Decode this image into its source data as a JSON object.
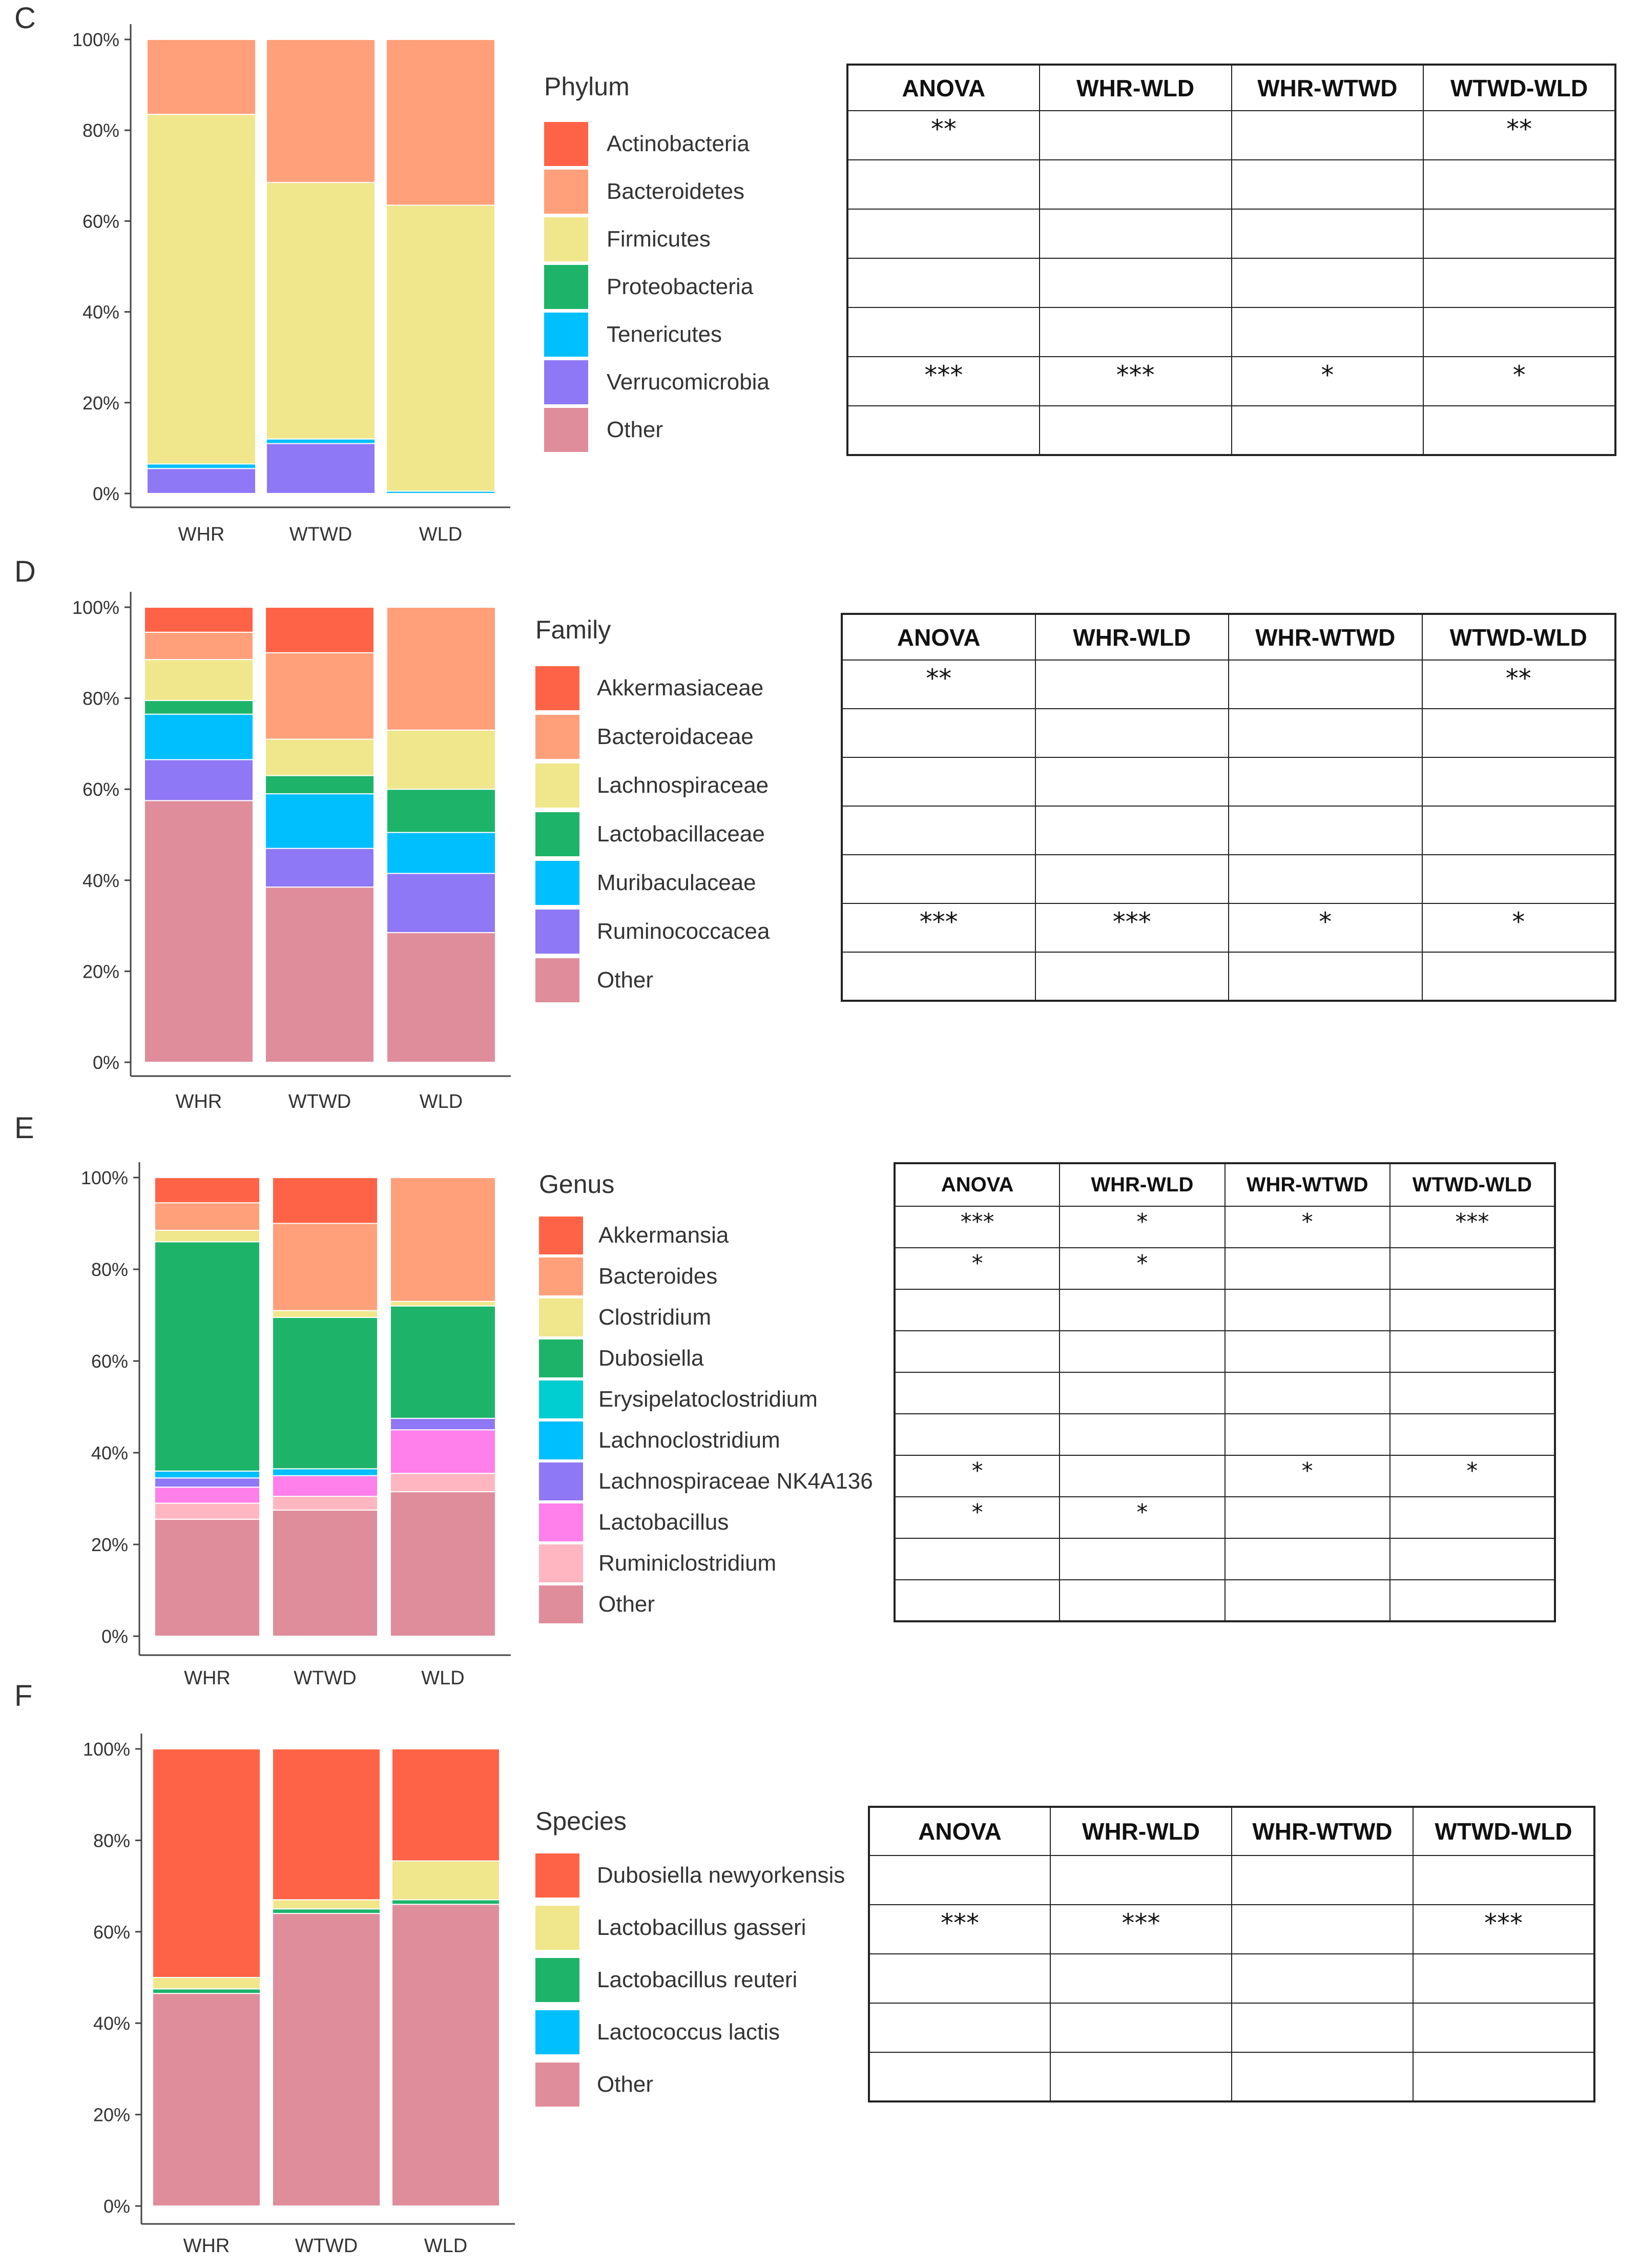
{
  "figure": {
    "panels": [
      {
        "id": "C",
        "letter": "C",
        "legend_title": "Phylum",
        "table": {
          "headers": [
            "ANOVA",
            "WHR-WLD",
            "WHR-WTWD",
            "WTWD-WLD"
          ],
          "rows": [
            [
              "**",
              "",
              "",
              "**"
            ],
            [
              "",
              "",
              "",
              ""
            ],
            [
              "",
              "",
              "",
              ""
            ],
            [
              "",
              "",
              "",
              ""
            ],
            [
              "",
              "",
              "",
              ""
            ],
            [
              "***",
              "***",
              "*",
              "*"
            ],
            [
              "",
              "",
              "",
              ""
            ]
          ]
        }
      },
      {
        "id": "D",
        "letter": "D",
        "legend_title": "Family",
        "table": {
          "headers": [
            "ANOVA",
            "WHR-WLD",
            "WHR-WTWD",
            "WTWD-WLD"
          ],
          "rows": [
            [
              "**",
              "",
              "",
              "**"
            ],
            [
              "",
              "",
              "",
              ""
            ],
            [
              "",
              "",
              "",
              ""
            ],
            [
              "",
              "",
              "",
              ""
            ],
            [
              "",
              "",
              "",
              ""
            ],
            [
              "***",
              "***",
              "*",
              "*"
            ],
            [
              "",
              "",
              "",
              ""
            ]
          ]
        }
      },
      {
        "id": "E",
        "letter": "E",
        "legend_title": "Genus",
        "table": {
          "headers": [
            "ANOVA",
            "WHR-WLD",
            "WHR-WTWD",
            "WTWD-WLD"
          ],
          "rows": [
            [
              "***",
              "*",
              "*",
              "***"
            ],
            [
              "*",
              "*",
              "",
              ""
            ],
            [
              "",
              "",
              "",
              ""
            ],
            [
              "",
              "",
              "",
              ""
            ],
            [
              "",
              "",
              "",
              ""
            ],
            [
              "",
              "",
              "",
              ""
            ],
            [
              "*",
              "",
              "*",
              "*"
            ],
            [
              "*",
              "*",
              "",
              ""
            ],
            [
              "",
              "",
              "",
              ""
            ],
            [
              "",
              "",
              "",
              ""
            ]
          ]
        }
      },
      {
        "id": "F",
        "letter": "F",
        "legend_title": "Species",
        "table": {
          "headers": [
            "ANOVA",
            "WHR-WLD",
            "WHR-WTWD",
            "WTWD-WLD"
          ],
          "rows": [
            [
              "",
              "",
              "",
              ""
            ],
            [
              "***",
              "***",
              "",
              "***"
            ],
            [
              "",
              "",
              "",
              ""
            ],
            [
              "",
              "",
              "",
              ""
            ],
            [
              "",
              "",
              "",
              ""
            ]
          ]
        }
      }
    ]
  },
  "chart_data": [
    {
      "type": "bar",
      "stacked": true,
      "panel": "C",
      "title": "",
      "xlabel": "",
      "ylabel": "",
      "ylim": [
        0,
        100
      ],
      "y_ticks": [
        "0%",
        "20%",
        "40%",
        "60%",
        "80%",
        "100%"
      ],
      "categories": [
        "WHR",
        "WTWD",
        "WLD"
      ],
      "legend_title": "Phylum",
      "series": [
        {
          "name": "Actinobacteria",
          "color": "#FF6347",
          "values": [
            0,
            0,
            0
          ]
        },
        {
          "name": "Bacteroidetes",
          "color": "#FFA07A",
          "values": [
            16.5,
            31.5,
            36.5
          ]
        },
        {
          "name": "Firmicutes",
          "color": "#F0E68C",
          "values": [
            77,
            56.5,
            63
          ]
        },
        {
          "name": "Proteobacteria",
          "color": "#1DB46A",
          "values": [
            0,
            0,
            0
          ]
        },
        {
          "name": "Tenericutes",
          "color": "#00BFFF",
          "values": [
            1,
            1,
            0.5
          ]
        },
        {
          "name": "Verrucomicrobia",
          "color": "#8F78F5",
          "values": [
            5.5,
            11,
            0
          ]
        },
        {
          "name": "Other",
          "color": "#E08D9B",
          "values": [
            0,
            0,
            0
          ]
        }
      ]
    },
    {
      "type": "bar",
      "stacked": true,
      "panel": "D",
      "title": "",
      "xlabel": "",
      "ylabel": "",
      "ylim": [
        0,
        100
      ],
      "y_ticks": [
        "0%",
        "20%",
        "40%",
        "60%",
        "80%",
        "100%"
      ],
      "categories": [
        "WHR",
        "WTWD",
        "WLD"
      ],
      "legend_title": "Family",
      "series": [
        {
          "name": "Akkermasiaceae",
          "color": "#FF6347",
          "values": [
            5.5,
            10,
            0
          ]
        },
        {
          "name": "Bacteroidaceae",
          "color": "#FFA07A",
          "values": [
            6,
            19,
            27
          ]
        },
        {
          "name": "Lachnospiraceae",
          "color": "#F0E68C",
          "values": [
            9,
            8,
            13
          ]
        },
        {
          "name": "Lactobacillaceae",
          "color": "#1DB46A",
          "values": [
            3,
            4,
            9.5
          ]
        },
        {
          "name": "Muribaculaceae",
          "color": "#00BFFF",
          "values": [
            10,
            12,
            9
          ]
        },
        {
          "name": "Ruminococcacea",
          "color": "#8F78F5",
          "values": [
            9,
            8.5,
            13
          ]
        },
        {
          "name": "Other",
          "color": "#E08D9B",
          "values": [
            57.5,
            38.5,
            28.5
          ]
        }
      ]
    },
    {
      "type": "bar",
      "stacked": true,
      "panel": "E",
      "title": "",
      "xlabel": "",
      "ylabel": "",
      "ylim": [
        0,
        100
      ],
      "y_ticks": [
        "0%",
        "20%",
        "40%",
        "60%",
        "80%",
        "100%"
      ],
      "categories": [
        "WHR",
        "WTWD",
        "WLD"
      ],
      "legend_title": "Genus",
      "series": [
        {
          "name": "Akkermansia",
          "color": "#FF6347",
          "values": [
            5.5,
            10,
            0
          ]
        },
        {
          "name": "Bacteroides",
          "color": "#FFA07A",
          "values": [
            6,
            19,
            27
          ]
        },
        {
          "name": "Clostridium",
          "color": "#F0E68C",
          "values": [
            2.5,
            1.5,
            1
          ]
        },
        {
          "name": "Dubosiella",
          "color": "#1DB46A",
          "values": [
            50,
            33,
            24.5
          ]
        },
        {
          "name": "Erysipelatoclostridium",
          "color": "#00CED1",
          "values": [
            0,
            0,
            0
          ]
        },
        {
          "name": "Lachnoclostridium",
          "color": "#00BFFF",
          "values": [
            1.5,
            1.5,
            0
          ]
        },
        {
          "name": "Lachnospiraceae NK4A136",
          "color": "#8F78F5",
          "values": [
            2,
            0,
            2.5
          ]
        },
        {
          "name": "Lactobacillus",
          "color": "#FF7FEB",
          "values": [
            3.5,
            4.5,
            9.5
          ]
        },
        {
          "name": "Ruminiclostridium",
          "color": "#FFB6C1",
          "values": [
            3.5,
            3,
            4
          ]
        },
        {
          "name": "Other",
          "color": "#E08D9B",
          "values": [
            25.5,
            27.5,
            31.5
          ]
        }
      ]
    },
    {
      "type": "bar",
      "stacked": true,
      "panel": "F",
      "title": "",
      "xlabel": "",
      "ylabel": "",
      "ylim": [
        0,
        100
      ],
      "y_ticks": [
        "0%",
        "20%",
        "40%",
        "60%",
        "80%",
        "100%"
      ],
      "categories": [
        "WHR",
        "WTWD",
        "WLD"
      ],
      "legend_title": "Species",
      "series": [
        {
          "name": "Dubosiella newyorkensis",
          "color": "#FF6347",
          "values": [
            50,
            33,
            24.5
          ]
        },
        {
          "name": "Lactobacillus gasseri",
          "color": "#F0E68C",
          "values": [
            2.5,
            2,
            8.5
          ]
        },
        {
          "name": "Lactobacillus reuteri",
          "color": "#1DB46A",
          "values": [
            1,
            1,
            1
          ]
        },
        {
          "name": "Lactococcus lactis",
          "color": "#00BFFF",
          "values": [
            0,
            0,
            0
          ]
        },
        {
          "name": "Other",
          "color": "#E08D9B",
          "values": [
            46.5,
            64,
            66
          ]
        }
      ]
    }
  ]
}
